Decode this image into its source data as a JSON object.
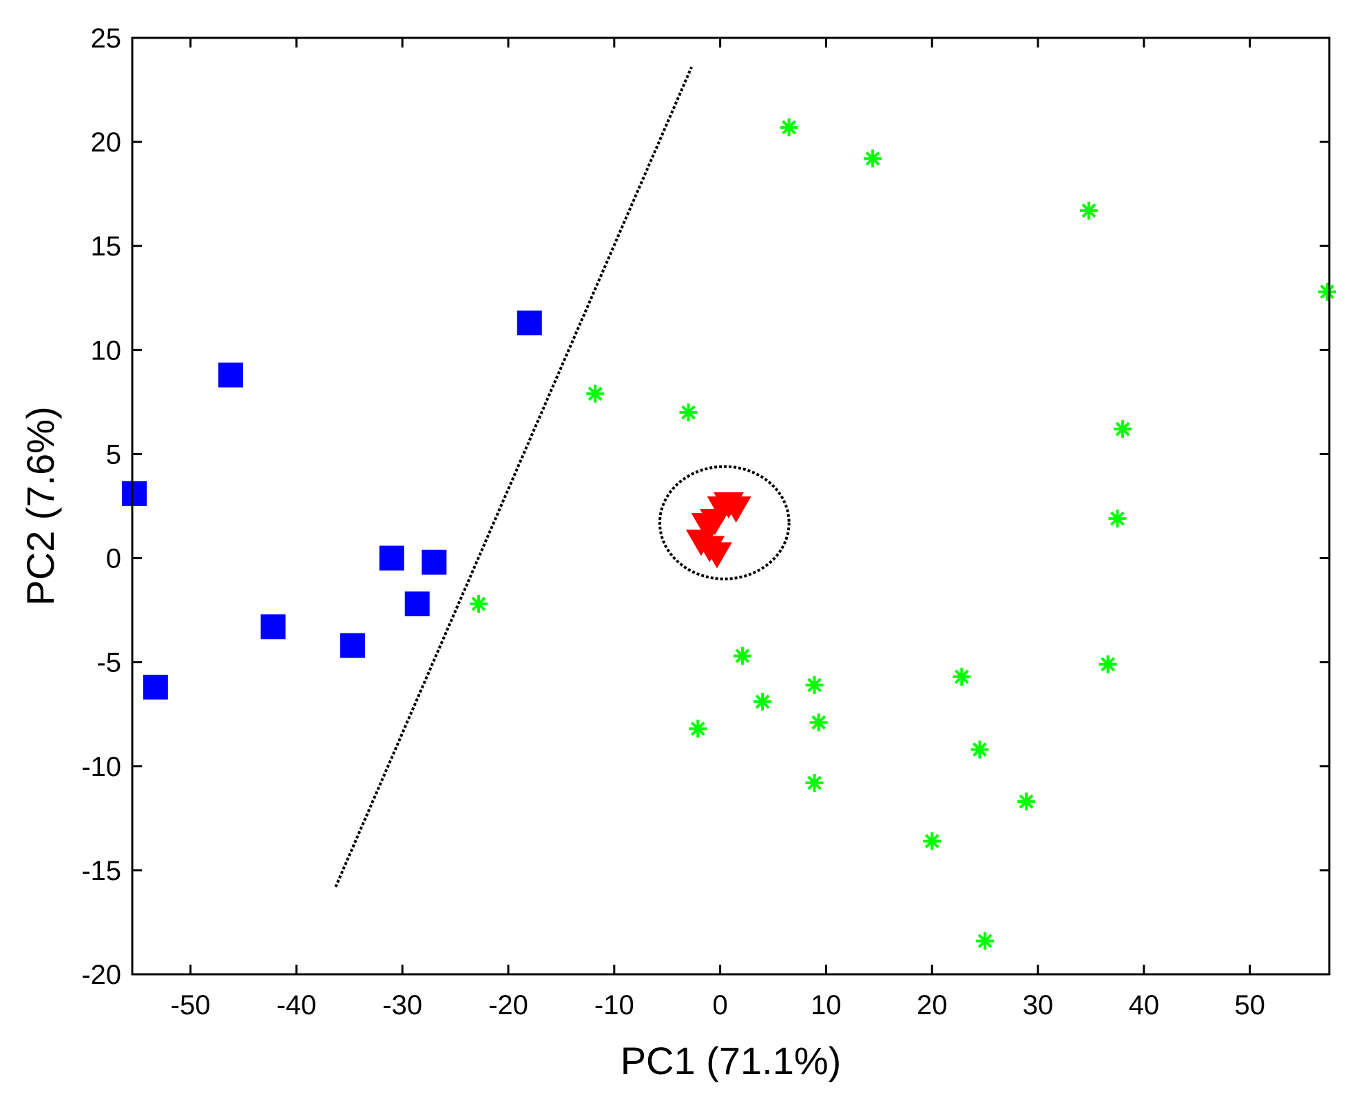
{
  "chart_data": {
    "type": "scatter",
    "title": "",
    "xlabel": "PC1 (71.1%)",
    "ylabel": "PC2 (7.6%)",
    "xlim": [
      -55.5,
      57.5
    ],
    "ylim": [
      -20,
      25
    ],
    "xticks": [
      -50,
      -40,
      -30,
      -20,
      -10,
      0,
      10,
      20,
      30,
      40,
      50
    ],
    "xtick_labels": [
      "-50",
      "-40",
      "-30",
      "-20",
      "-10",
      "0",
      "10",
      "20",
      "30",
      "40",
      "50"
    ],
    "yticks": [
      25,
      20,
      15,
      10,
      5,
      0,
      -5,
      -10,
      -15,
      -20
    ],
    "ytick_labels": [
      "25",
      "20",
      "15",
      "10",
      "5",
      "0",
      "-5",
      "-10",
      "-15",
      "-20"
    ],
    "grid": false,
    "series": [
      {
        "name": "group-square",
        "marker": "square",
        "color": "#0000ff",
        "points": [
          {
            "x": -55.3,
            "y": 3.1
          },
          {
            "x": -53.3,
            "y": -6.2
          },
          {
            "x": -46.2,
            "y": 8.8
          },
          {
            "x": -42.2,
            "y": -3.3
          },
          {
            "x": -34.7,
            "y": -4.2
          },
          {
            "x": -31.0,
            "y": 0.0
          },
          {
            "x": -28.6,
            "y": -2.2
          },
          {
            "x": -27.0,
            "y": -0.2
          },
          {
            "x": -18.0,
            "y": 11.3
          }
        ]
      },
      {
        "name": "group-triangle",
        "marker": "triangle-down",
        "color": "#ff0000",
        "points": [
          {
            "x": 0.2,
            "y": 2.5
          },
          {
            "x": 0.8,
            "y": 2.7
          },
          {
            "x": 1.5,
            "y": 2.5
          },
          {
            "x": -1.3,
            "y": 1.7
          },
          {
            "x": -0.5,
            "y": 1.9
          },
          {
            "x": -1.8,
            "y": 0.9
          },
          {
            "x": -1.0,
            "y": 0.6
          },
          {
            "x": -0.3,
            "y": 0.3
          }
        ]
      },
      {
        "name": "group-star",
        "marker": "asterisk",
        "color": "#00ff00",
        "points": [
          {
            "x": 6.5,
            "y": 20.7
          },
          {
            "x": 14.4,
            "y": 19.2
          },
          {
            "x": 34.8,
            "y": 16.7
          },
          {
            "x": 57.3,
            "y": 12.8
          },
          {
            "x": -11.8,
            "y": 7.9
          },
          {
            "x": -3.0,
            "y": 7.0
          },
          {
            "x": 38.0,
            "y": 6.2
          },
          {
            "x": 37.5,
            "y": 1.9
          },
          {
            "x": -22.8,
            "y": -2.2
          },
          {
            "x": 2.1,
            "y": -4.7
          },
          {
            "x": 36.6,
            "y": -5.1
          },
          {
            "x": 22.8,
            "y": -5.7
          },
          {
            "x": 8.9,
            "y": -6.1
          },
          {
            "x": 4.0,
            "y": -6.9
          },
          {
            "x": 9.3,
            "y": -7.9
          },
          {
            "x": -2.1,
            "y": -8.2
          },
          {
            "x": 24.5,
            "y": -9.2
          },
          {
            "x": 8.9,
            "y": -10.8
          },
          {
            "x": 28.9,
            "y": -11.7
          },
          {
            "x": 20.0,
            "y": -13.6
          },
          {
            "x": 25.0,
            "y": -18.4
          }
        ]
      }
    ],
    "annotations": [
      {
        "type": "dotted-line",
        "from": {
          "x": -36.3,
          "y": -15.8
        },
        "to": {
          "x": -2.7,
          "y": 23.6
        }
      },
      {
        "type": "dotted-ellipse",
        "center": {
          "x": 0.4,
          "y": 1.7
        },
        "rx": 6.1,
        "ry": 2.7
      }
    ]
  }
}
